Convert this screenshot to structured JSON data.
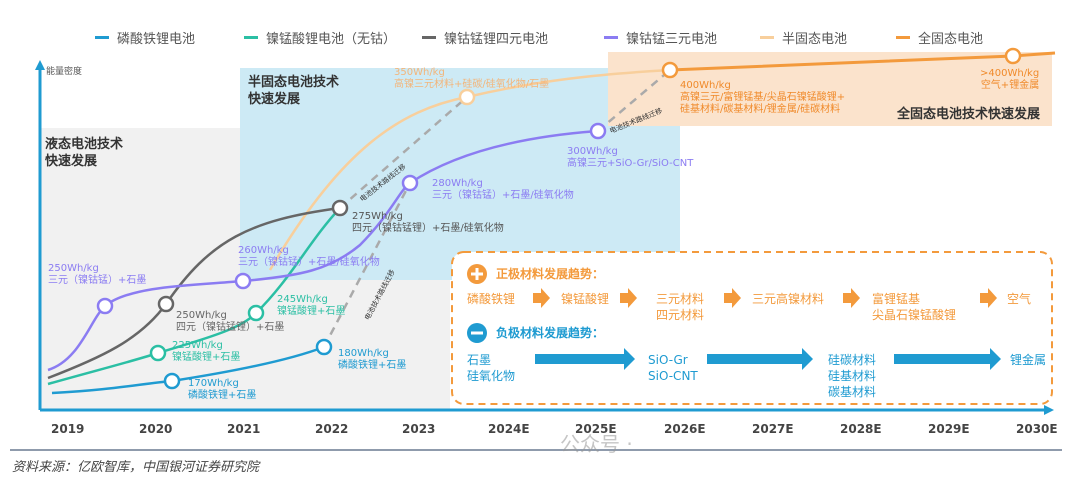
{
  "legend": [
    {
      "label": "磷酸铁锂电池",
      "color": "#1f9bd1"
    },
    {
      "label": "镍锰酸锂电池（无钴）",
      "color": "#2bbfa4"
    },
    {
      "label": "镍钴锰锂四元电池",
      "color": "#666666"
    },
    {
      "label": "镍钴锰三元电池",
      "color": "#8b7cf2"
    },
    {
      "label": "半固态电池",
      "color": "#f8cf9c"
    },
    {
      "label": "全固态电池",
      "color": "#f39a3c"
    }
  ],
  "y_axis_label": "能量密度",
  "x_axis": [
    "2019",
    "2020",
    "2021",
    "2022",
    "2023",
    "2024E",
    "2025E",
    "2026E",
    "2027E",
    "2028E",
    "2029E",
    "2030E"
  ],
  "regions": {
    "liquid": "液态电池技术\n快速发展",
    "semi": "半固态电池技术\n快速发展",
    "solid": "全固态电池技术快速发展"
  },
  "nodes": {
    "lfp1": {
      "value": "170Wh/kg",
      "desc": "磷酸铁锂+石墨"
    },
    "lfp2": {
      "value": "180Wh/kg",
      "desc": "磷酸铁锂+石墨"
    },
    "lmn1": {
      "value": "225Wh/kg",
      "desc": "镍锰酸锂+石墨"
    },
    "lmn2": {
      "value": "245Wh/kg",
      "desc": "镍锰酸锂+石墨"
    },
    "quat1": {
      "value": "250Wh/kg",
      "desc": "四元（镍钴锰锂）+石墨"
    },
    "quat2": {
      "value": "275Wh/kg",
      "desc": "四元（镍钴锰锂）+石墨/硅氧化物"
    },
    "tern1": {
      "value": "250Wh/kg",
      "desc": "三元（镍钴锰）+石墨"
    },
    "tern2": {
      "value": "260Wh/kg",
      "desc": "三元（镍钴锰）+石墨/硅氧化物"
    },
    "tern3": {
      "value": "280Wh/kg",
      "desc": "三元（镍钴锰）+石墨/硅氧化物"
    },
    "tern4": {
      "value": "300Wh/kg",
      "desc": "高镍三元+SiO-Gr/SiO-CNT"
    },
    "semi1": {
      "value": "350Wh/kg",
      "desc": "高镍三元材料+硅碳/硅氧化物/石墨"
    },
    "solid1": {
      "value": "400Wh/kg",
      "desc": "高镍三元/富锂锰基/尖晶石镍锰酸锂+\n硅基材料/碳基材料/锂金属/硅碳材料"
    },
    "solid2": {
      "value": ">400Wh/kg",
      "desc": "空气+锂金属"
    }
  },
  "migration_label": "电池技术路线迁移",
  "cathode": {
    "title": "正极材料发展趋势：",
    "steps": [
      "磷酸铁锂",
      "镍锰酸锂",
      "三元材料\n四元材料",
      "三元高镍材料",
      "富锂锰基\n尖晶石镍锰酸锂",
      "空气"
    ],
    "color": "#f39a3c"
  },
  "anode": {
    "title": "负极材料发展趋势：",
    "steps": [
      "石墨\n硅氧化物",
      "SiO-Gr\nSiO-CNT",
      "硅碳材料\n硅基材料\n碳基材料",
      "锂金属"
    ],
    "color": "#1f9bd1"
  },
  "source": "资料来源：亿欧智库，中国银河证券研究院",
  "watermark": "公众号 ·"
}
